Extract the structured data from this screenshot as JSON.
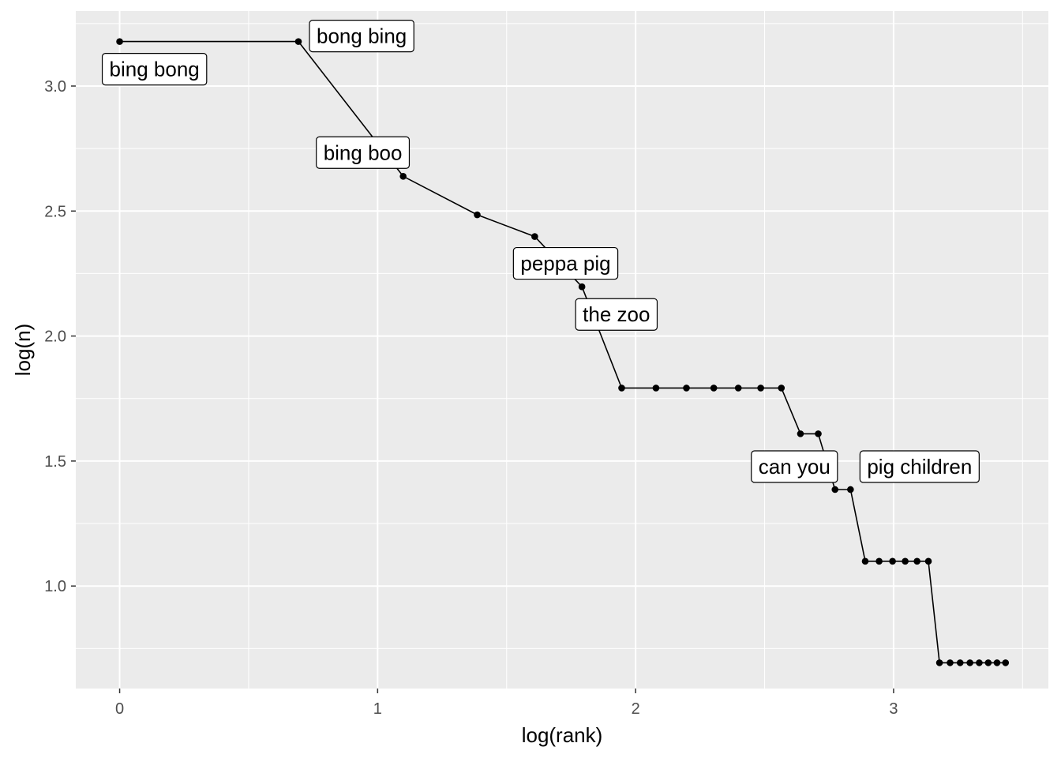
{
  "chart_data": {
    "type": "line",
    "xlabel": "log(rank)",
    "ylabel": "log(n)",
    "xlim": [
      -0.17,
      3.6
    ],
    "ylim": [
      0.59,
      3.3
    ],
    "x_ticks": [
      0,
      1,
      2,
      3
    ],
    "x_tick_labels": [
      "0",
      "1",
      "2",
      "3"
    ],
    "y_ticks": [
      1.0,
      1.5,
      2.0,
      2.5,
      3.0
    ],
    "y_tick_labels": [
      "1.0",
      "1.5",
      "2.0",
      "2.5",
      "3.0"
    ],
    "grid": true,
    "background": "#ebebeb",
    "line_color": "#000000",
    "points": [
      {
        "x": 0.0,
        "y": 3.178
      },
      {
        "x": 0.693,
        "y": 3.178
      },
      {
        "x": 1.099,
        "y": 2.639
      },
      {
        "x": 1.386,
        "y": 2.485
      },
      {
        "x": 1.609,
        "y": 2.398
      },
      {
        "x": 1.792,
        "y": 2.197
      },
      {
        "x": 1.946,
        "y": 1.792
      },
      {
        "x": 2.079,
        "y": 1.792
      },
      {
        "x": 2.197,
        "y": 1.792
      },
      {
        "x": 2.303,
        "y": 1.792
      },
      {
        "x": 2.398,
        "y": 1.792
      },
      {
        "x": 2.485,
        "y": 1.792
      },
      {
        "x": 2.565,
        "y": 1.792
      },
      {
        "x": 2.639,
        "y": 1.609
      },
      {
        "x": 2.708,
        "y": 1.609
      },
      {
        "x": 2.773,
        "y": 1.386
      },
      {
        "x": 2.833,
        "y": 1.386
      },
      {
        "x": 2.89,
        "y": 1.099
      },
      {
        "x": 2.944,
        "y": 1.099
      },
      {
        "x": 2.996,
        "y": 1.099
      },
      {
        "x": 3.045,
        "y": 1.099
      },
      {
        "x": 3.091,
        "y": 1.099
      },
      {
        "x": 3.135,
        "y": 1.099
      },
      {
        "x": 3.178,
        "y": 0.693
      },
      {
        "x": 3.219,
        "y": 0.693
      },
      {
        "x": 3.258,
        "y": 0.693
      },
      {
        "x": 3.296,
        "y": 0.693
      },
      {
        "x": 3.332,
        "y": 0.693
      },
      {
        "x": 3.367,
        "y": 0.693
      },
      {
        "x": 3.401,
        "y": 0.693
      },
      {
        "x": 3.434,
        "y": 0.693
      }
    ],
    "labels": [
      {
        "text": "bing bong",
        "point": 0
      },
      {
        "text": "bong bing",
        "point": 1
      },
      {
        "text": "bing boo",
        "point": 2
      },
      {
        "text": "peppa pig",
        "point": 4
      },
      {
        "text": "the zoo",
        "point": 5
      },
      {
        "text": "can you",
        "point": 15
      },
      {
        "text": "pig children",
        "point": 16
      }
    ]
  }
}
